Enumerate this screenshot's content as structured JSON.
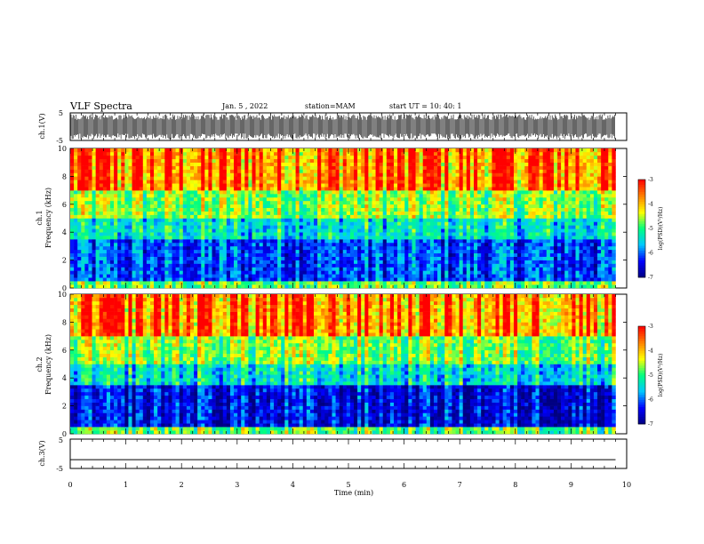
{
  "header": {
    "title": "VLF Spectra",
    "date": "Jan. 5 , 2022",
    "station": "station=MAM",
    "start": "start UT =   10: 40: 1"
  },
  "chart_data": [
    {
      "type": "line",
      "panel": "ch1-waveform",
      "ylabel": "ch.1(V)",
      "ylim": [
        -5,
        5
      ],
      "yticks": [
        "5",
        "-5"
      ],
      "xlim": [
        0,
        10
      ],
      "description_values": {
        "amplitude_envelope_V": [
          -4.5,
          4.5
        ]
      }
    },
    {
      "type": "heatmap",
      "panel": "ch1-spectrogram",
      "ylabel": "ch.1\nFrequency (kHz)",
      "ylabel_line1": "ch.1",
      "ylabel_line2": "Frequency (kHz)",
      "ylim": [
        0,
        10
      ],
      "yticks": [
        "0",
        "2",
        "4",
        "6",
        "8",
        "10"
      ],
      "xlim": [
        0,
        10
      ],
      "colorbar": {
        "label": "log(PSD)(V²/Hz)",
        "range": [
          -7,
          -3
        ],
        "ticks": [
          "-3",
          "-4",
          "-5",
          "-6",
          "-7"
        ],
        "colors": [
          "#000080",
          "#0000ff",
          "#00c8ff",
          "#00ff80",
          "#ffff00",
          "#ff8000",
          "#ff0000",
          "#ffffff"
        ]
      }
    },
    {
      "type": "heatmap",
      "panel": "ch2-spectrogram",
      "ylabel": "ch.2\nFrequency (kHz)",
      "ylabel_line1": "ch.2",
      "ylabel_line2": "Frequency (kHz)",
      "ylim": [
        0,
        10
      ],
      "yticks": [
        "0",
        "2",
        "4",
        "6",
        "8",
        "10"
      ],
      "xlim": [
        0,
        10
      ],
      "colorbar": {
        "label": "log(PSD)(V²/Hz)",
        "range": [
          -7,
          -3
        ],
        "ticks": [
          "-3",
          "-4",
          "-5",
          "-6",
          "-7"
        ],
        "colors": [
          "#000080",
          "#0000ff",
          "#00c8ff",
          "#00ff80",
          "#ffff00",
          "#ff8000",
          "#ff0000",
          "#ffffff"
        ]
      }
    },
    {
      "type": "line",
      "panel": "ch3-waveform",
      "ylabel": "ch.3(V)",
      "ylim": [
        -5,
        5
      ],
      "yticks": [
        "5",
        "-5"
      ],
      "xlim": [
        0,
        10
      ],
      "series": [
        {
          "x": [
            0,
            9.8
          ],
          "y": [
            -2,
            -2
          ]
        }
      ]
    }
  ],
  "xaxis": {
    "label": "Time (min)",
    "range": [
      0,
      10
    ],
    "ticks": [
      "0",
      "1",
      "2",
      "3",
      "4",
      "5",
      "6",
      "7",
      "8",
      "9",
      "10"
    ],
    "data_end": 9.8
  }
}
